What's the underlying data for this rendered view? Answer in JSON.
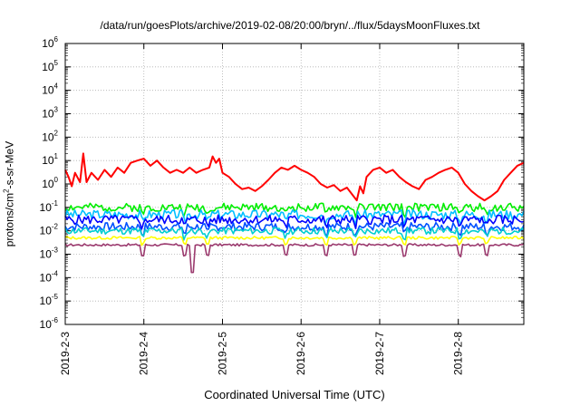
{
  "chart_data": {
    "type": "line",
    "title": "/data/run/goesPlots/archive/2019-02-08/20:00/bryn/../flux/5daysMoonFluxes.txt",
    "xlabel": "Coordinated Universal Time (UTC)",
    "ylabel": {
      "base": "protons/cm",
      "sup": "2",
      "rest": "-s-sr-MeV"
    },
    "yscale": "log",
    "ylim_exp": [
      -6,
      6
    ],
    "ytick_labels": [
      {
        "base": "10",
        "exp": "-6"
      },
      {
        "base": "10",
        "exp": "-5"
      },
      {
        "base": "10",
        "exp": "-4"
      },
      {
        "base": "10",
        "exp": "-3"
      },
      {
        "base": "10",
        "exp": "-2"
      },
      {
        "base": "10",
        "exp": "-1"
      },
      {
        "base": "10",
        "exp": "0"
      },
      {
        "base": "10",
        "exp": "1"
      },
      {
        "base": "10",
        "exp": "2"
      },
      {
        "base": "10",
        "exp": "3"
      },
      {
        "base": "10",
        "exp": "4"
      },
      {
        "base": "10",
        "exp": "5"
      },
      {
        "base": "10",
        "exp": "6"
      }
    ],
    "x_range": [
      "2019-02-03",
      "2019-02-08T20:00"
    ],
    "xtick_labels": [
      "2019-2-3",
      "2019-2-4",
      "2019-2-5",
      "2019-2-6",
      "2019-2-7",
      "2019-2-8"
    ],
    "grid": true,
    "series": [
      {
        "color": "#ff0000",
        "points": [
          [
            "2019-02-03T00:00",
            4
          ],
          [
            "2019-02-03T01:00",
            2
          ],
          [
            "2019-02-03T02:00",
            0.8
          ],
          [
            "2019-02-03T03:00",
            3
          ],
          [
            "2019-02-03T04:30",
            1.2
          ],
          [
            "2019-02-03T05:30",
            20
          ],
          [
            "2019-02-03T06:30",
            1.2
          ],
          [
            "2019-02-03T08:00",
            3
          ],
          [
            "2019-02-03T10:00",
            1.5
          ],
          [
            "2019-02-03T12:00",
            4
          ],
          [
            "2019-02-03T14:00",
            2
          ],
          [
            "2019-02-03T16:00",
            5
          ],
          [
            "2019-02-03T18:00",
            3
          ],
          [
            "2019-02-03T20:00",
            8
          ],
          [
            "2019-02-03T22:00",
            10
          ],
          [
            "2019-02-04T00:00",
            12
          ],
          [
            "2019-02-04T02:00",
            6
          ],
          [
            "2019-02-04T04:00",
            10
          ],
          [
            "2019-02-04T06:00",
            5
          ],
          [
            "2019-02-04T08:00",
            3
          ],
          [
            "2019-02-04T10:00",
            4
          ],
          [
            "2019-02-04T12:00",
            3
          ],
          [
            "2019-02-04T14:00",
            5
          ],
          [
            "2019-02-04T16:00",
            3
          ],
          [
            "2019-02-04T18:00",
            4
          ],
          [
            "2019-02-04T20:00",
            5
          ],
          [
            "2019-02-04T21:00",
            15
          ],
          [
            "2019-02-04T22:00",
            8
          ],
          [
            "2019-02-04T23:00",
            12
          ],
          [
            "2019-02-05T00:00",
            3
          ],
          [
            "2019-02-05T02:00",
            2
          ],
          [
            "2019-02-05T04:00",
            1
          ],
          [
            "2019-02-05T06:00",
            0.6
          ],
          [
            "2019-02-05T08:00",
            0.7
          ],
          [
            "2019-02-05T10:00",
            0.5
          ],
          [
            "2019-02-05T12:00",
            0.8
          ],
          [
            "2019-02-05T14:00",
            1.5
          ],
          [
            "2019-02-05T16:00",
            3
          ],
          [
            "2019-02-05T18:00",
            5
          ],
          [
            "2019-02-05T20:00",
            4
          ],
          [
            "2019-02-05T22:00",
            6
          ],
          [
            "2019-02-06T00:00",
            4
          ],
          [
            "2019-02-06T02:00",
            3
          ],
          [
            "2019-02-06T04:00",
            2
          ],
          [
            "2019-02-06T06:00",
            1
          ],
          [
            "2019-02-06T08:00",
            0.7
          ],
          [
            "2019-02-06T10:00",
            0.9
          ],
          [
            "2019-02-06T12:00",
            0.5
          ],
          [
            "2019-02-06T14:00",
            0.7
          ],
          [
            "2019-02-06T16:00",
            0.3
          ],
          [
            "2019-02-06T17:00",
            0.2
          ],
          [
            "2019-02-06T18:00",
            0.8
          ],
          [
            "2019-02-06T19:00",
            0.4
          ],
          [
            "2019-02-06T20:00",
            2
          ],
          [
            "2019-02-06T22:00",
            4
          ],
          [
            "2019-02-07T00:00",
            5
          ],
          [
            "2019-02-07T02:00",
            3
          ],
          [
            "2019-02-07T04:00",
            4
          ],
          [
            "2019-02-07T06:00",
            2
          ],
          [
            "2019-02-07T08:00",
            1.2
          ],
          [
            "2019-02-07T10:00",
            0.8
          ],
          [
            "2019-02-07T12:00",
            0.6
          ],
          [
            "2019-02-07T14:00",
            1.5
          ],
          [
            "2019-02-07T16:00",
            2
          ],
          [
            "2019-02-07T18:00",
            3
          ],
          [
            "2019-02-07T20:00",
            4
          ],
          [
            "2019-02-07T22:00",
            5
          ],
          [
            "2019-02-08T00:00",
            3
          ],
          [
            "2019-02-08T02:00",
            1
          ],
          [
            "2019-02-08T04:00",
            0.5
          ],
          [
            "2019-02-08T06:00",
            0.3
          ],
          [
            "2019-02-08T08:00",
            0.2
          ],
          [
            "2019-02-08T10:00",
            0.3
          ],
          [
            "2019-02-08T12:00",
            0.5
          ],
          [
            "2019-02-08T14:00",
            1.5
          ],
          [
            "2019-02-08T16:00",
            3
          ],
          [
            "2019-02-08T18:00",
            6
          ],
          [
            "2019-02-08T20:00",
            8
          ]
        ]
      },
      {
        "color": "#00ee00",
        "base": 0.1,
        "variation": 0.35,
        "seed": 2
      },
      {
        "color": "#00c0ff",
        "base": 0.05,
        "variation": 0.4,
        "seed": 3
      },
      {
        "color": "#0000ff",
        "base": 0.03,
        "variation": 0.4,
        "seed": 5
      },
      {
        "color": "#0050ff",
        "base": 0.015,
        "variation": 0.35,
        "seed": 7
      },
      {
        "color": "#00ced1",
        "base": 0.01,
        "variation": 0.3,
        "seed": 11
      },
      {
        "color": "#ffff00",
        "base": 0.005,
        "variation": 0.12,
        "seed": 13
      },
      {
        "color": "#9b3a6e",
        "base": 0.0025,
        "variation": 0.1,
        "seed": 17
      }
    ]
  }
}
